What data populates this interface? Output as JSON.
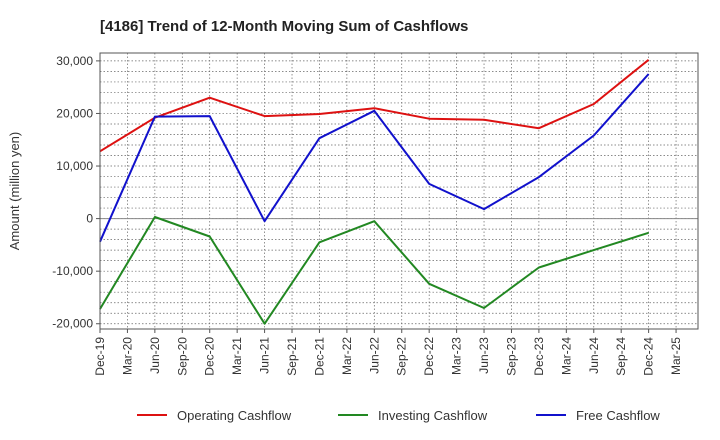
{
  "chart_data": {
    "type": "line",
    "title": "[4186]  Trend of 12-Month Moving Sum of Cashflows",
    "xlabel": "",
    "ylabel": "Amount (million yen)",
    "ylim": [
      -21000,
      31500
    ],
    "yticks": [
      -20000,
      -10000,
      0,
      10000,
      20000,
      30000
    ],
    "ytick_labels": [
      "-20,000",
      "-10,000",
      "0",
      "10,000",
      "20,000",
      "30,000"
    ],
    "categories": [
      "Dec-19",
      "Mar-20",
      "Jun-20",
      "Sep-20",
      "Dec-20",
      "Mar-21",
      "Jun-21",
      "Sep-21",
      "Dec-21",
      "Mar-22",
      "Jun-22",
      "Sep-22",
      "Dec-22",
      "Mar-23",
      "Jun-23",
      "Sep-23",
      "Dec-23",
      "Mar-24",
      "Jun-24",
      "Sep-24",
      "Dec-24",
      "Mar-25"
    ],
    "grid": true,
    "legend_position": "bottom",
    "series": [
      {
        "name": "Operating Cashflow",
        "color": "#dd1111",
        "values": [
          12800,
          null,
          19200,
          null,
          23000,
          null,
          19500,
          null,
          19900,
          null,
          21000,
          null,
          19000,
          null,
          18800,
          null,
          17200,
          null,
          21800,
          null,
          30200,
          null
        ]
      },
      {
        "name": "Investing Cashflow",
        "color": "#228822",
        "values": [
          -17200,
          null,
          300,
          null,
          -3400,
          null,
          -20000,
          null,
          -4500,
          null,
          -500,
          null,
          -12400,
          null,
          -17000,
          null,
          -9300,
          null,
          -6000,
          null,
          -2700,
          null
        ]
      },
      {
        "name": "Free Cashflow",
        "color": "#1111cc",
        "values": [
          -4400,
          null,
          19400,
          null,
          19500,
          null,
          -500,
          null,
          15300,
          null,
          20500,
          null,
          6600,
          null,
          1800,
          null,
          7900,
          null,
          15800,
          null,
          27500,
          null
        ]
      }
    ]
  }
}
